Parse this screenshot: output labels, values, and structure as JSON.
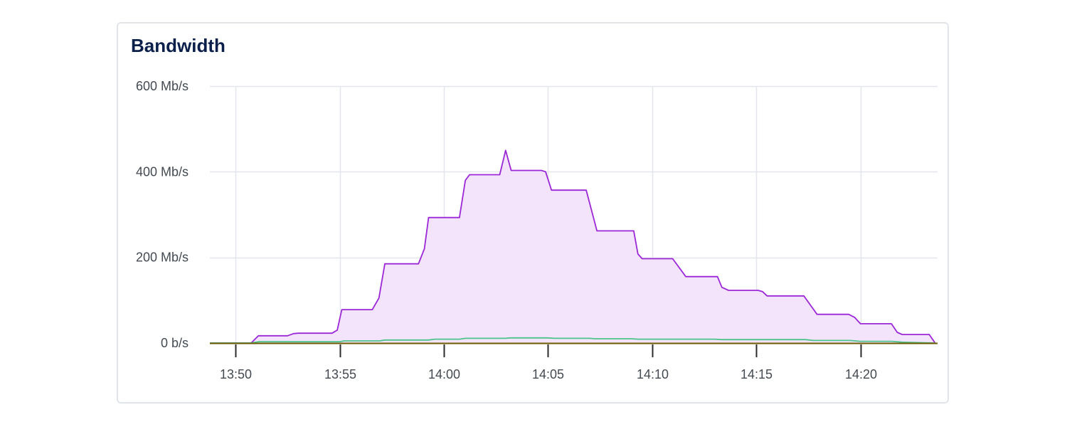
{
  "card": {
    "title": "Bandwidth"
  },
  "colors": {
    "series_main_line": "#9b27d6",
    "series_main_fill": "#f3e4fc",
    "series_secondary_line": "#4cc38a",
    "baseline": "#6b5a00",
    "grid": "#e3e6ec",
    "tick": "#2b2b2b"
  },
  "chart_data": {
    "type": "area",
    "title": "Bandwidth",
    "xlabel": "",
    "ylabel": "",
    "x_ticks": [
      "13:50",
      "13:55",
      "14:00",
      "14:05",
      "14:10",
      "14:15",
      "14:20"
    ],
    "y_ticks": [
      "0 b/s",
      "200 Mb/s",
      "400 Mb/s",
      "600 Mb/s"
    ],
    "y_tick_values": [
      0,
      200,
      400,
      600
    ],
    "ylim": [
      0,
      600
    ],
    "xlim": [
      "13:48:46",
      "14:23:42"
    ],
    "grid": true,
    "legend": "none",
    "series": [
      {
        "unit": "Mb/s",
        "points": [
          [
            "13:48:46",
            0
          ],
          [
            "13:50:45",
            0
          ],
          [
            "13:51:06",
            17
          ],
          [
            "13:52:30",
            17
          ],
          [
            "13:52:47",
            22
          ],
          [
            "13:53:00",
            23
          ],
          [
            "13:54:38",
            23
          ],
          [
            "13:54:53",
            30
          ],
          [
            "13:55:06",
            78
          ],
          [
            "13:56:34",
            78
          ],
          [
            "13:56:53",
            105
          ],
          [
            "13:57:10",
            185
          ],
          [
            "13:58:47",
            185
          ],
          [
            "13:59:04",
            220
          ],
          [
            "13:59:16",
            293
          ],
          [
            "14:00:45",
            293
          ],
          [
            "14:01:02",
            380
          ],
          [
            "14:01:14",
            393
          ],
          [
            "14:02:41",
            393
          ],
          [
            "14:02:58",
            450
          ],
          [
            "14:03:14",
            403
          ],
          [
            "14:04:41",
            403
          ],
          [
            "14:04:53",
            400
          ],
          [
            "14:05:10",
            357
          ],
          [
            "14:06:50",
            357
          ],
          [
            "14:07:21",
            262
          ],
          [
            "14:09:07",
            262
          ],
          [
            "14:09:19",
            208
          ],
          [
            "14:09:31",
            197
          ],
          [
            "14:10:59",
            197
          ],
          [
            "14:11:37",
            155
          ],
          [
            "14:13:08",
            155
          ],
          [
            "14:13:21",
            130
          ],
          [
            "14:13:40",
            123
          ],
          [
            "14:15:05",
            123
          ],
          [
            "14:15:18",
            120
          ],
          [
            "14:15:31",
            110
          ],
          [
            "14:17:17",
            110
          ],
          [
            "14:17:55",
            67
          ],
          [
            "14:19:26",
            67
          ],
          [
            "14:19:43",
            60
          ],
          [
            "14:20:00",
            45
          ],
          [
            "14:21:29",
            45
          ],
          [
            "14:21:46",
            25
          ],
          [
            "14:22:00",
            20
          ],
          [
            "14:23:18",
            20
          ],
          [
            "14:23:35",
            0
          ]
        ]
      },
      {
        "unit": "Mb/s",
        "points": [
          [
            "13:48:46",
            0
          ],
          [
            "13:50:45",
            0
          ],
          [
            "13:51:06",
            3
          ],
          [
            "13:55:00",
            3
          ],
          [
            "13:55:13",
            5
          ],
          [
            "13:56:55",
            5
          ],
          [
            "13:57:10",
            7
          ],
          [
            "13:59:16",
            7
          ],
          [
            "13:59:34",
            9
          ],
          [
            "14:00:45",
            9
          ],
          [
            "14:01:02",
            11
          ],
          [
            "14:02:58",
            11
          ],
          [
            "14:03:10",
            12
          ],
          [
            "14:05:00",
            12
          ],
          [
            "14:05:18",
            11
          ],
          [
            "14:07:00",
            11
          ],
          [
            "14:07:15",
            10
          ],
          [
            "14:09:00",
            10
          ],
          [
            "14:09:20",
            9
          ],
          [
            "14:13:00",
            9
          ],
          [
            "14:13:20",
            8
          ],
          [
            "14:17:20",
            8
          ],
          [
            "14:17:45",
            6
          ],
          [
            "14:19:30",
            6
          ],
          [
            "14:20:00",
            4
          ],
          [
            "14:21:30",
            4
          ],
          [
            "14:22:00",
            2
          ],
          [
            "14:23:35",
            0
          ]
        ]
      }
    ]
  }
}
